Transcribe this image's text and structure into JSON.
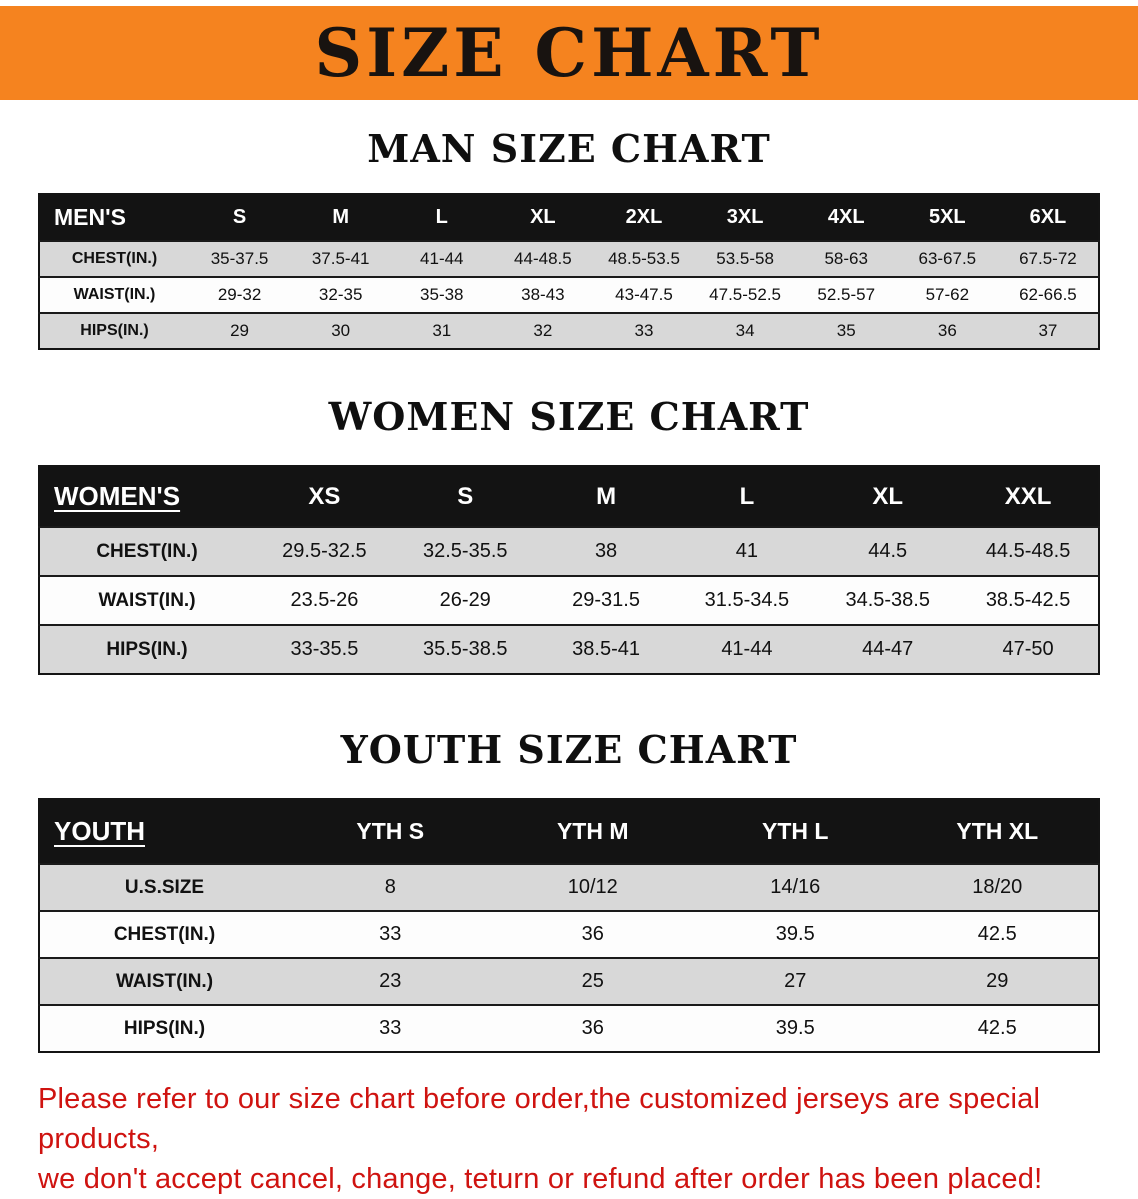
{
  "banner": {
    "title": "SIZE CHART",
    "bg_color": "#f5831f",
    "text_color": "#181310"
  },
  "sections": [
    {
      "heading": "MAN SIZE CHART",
      "table": {
        "corner_label": "MEN'S",
        "corner_underline": false,
        "columns": [
          "S",
          "M",
          "L",
          "XL",
          "2XL",
          "3XL",
          "4XL",
          "5XL",
          "6XL"
        ],
        "rows": [
          {
            "label": "CHEST(IN.)",
            "values": [
              "35-37.5",
              "37.5-41",
              "41-44",
              "44-48.5",
              "48.5-53.5",
              "53.5-58",
              "58-63",
              "63-67.5",
              "67.5-72"
            ]
          },
          {
            "label": "WAIST(IN.)",
            "values": [
              "29-32",
              "32-35",
              "35-38",
              "38-43",
              "43-47.5",
              "47.5-52.5",
              "52.5-57",
              "57-62",
              "62-66.5"
            ]
          },
          {
            "label": "HIPS(IN.)",
            "values": [
              "29",
              "30",
              "31",
              "32",
              "33",
              "34",
              "35",
              "36",
              "37"
            ]
          }
        ]
      }
    },
    {
      "heading": "WOMEN SIZE CHART",
      "table": {
        "corner_label": "WOMEN'S",
        "corner_underline": true,
        "columns": [
          "XS",
          "S",
          "M",
          "L",
          "XL",
          "XXL"
        ],
        "rows": [
          {
            "label": "CHEST(IN.)",
            "values": [
              "29.5-32.5",
              "32.5-35.5",
              "38",
              "41",
              "44.5",
              "44.5-48.5"
            ]
          },
          {
            "label": "WAIST(IN.)",
            "values": [
              "23.5-26",
              "26-29",
              "29-31.5",
              "31.5-34.5",
              "34.5-38.5",
              "38.5-42.5"
            ]
          },
          {
            "label": "HIPS(IN.)",
            "values": [
              "33-35.5",
              "35.5-38.5",
              "38.5-41",
              "41-44",
              "44-47",
              "47-50"
            ]
          }
        ]
      }
    },
    {
      "heading": "YOUTH SIZE CHART",
      "table": {
        "corner_label": "YOUTH",
        "corner_underline": true,
        "columns": [
          "YTH S",
          "YTH M",
          "YTH L",
          "YTH XL"
        ],
        "rows": [
          {
            "label": "U.S.SIZE",
            "values": [
              "8",
              "10/12",
              "14/16",
              "18/20"
            ]
          },
          {
            "label": "CHEST(IN.)",
            "values": [
              "33",
              "36",
              "39.5",
              "42.5"
            ]
          },
          {
            "label": "WAIST(IN.)",
            "values": [
              "23",
              "25",
              "27",
              "29"
            ]
          },
          {
            "label": "HIPS(IN.)",
            "values": [
              "33",
              "36",
              "39.5",
              "42.5"
            ]
          }
        ]
      }
    }
  ],
  "footer": {
    "line1": "Please refer to our size chart before order,the customized jerseys are special products,",
    "line2": "we don't accept cancel, change, teturn or refund after order has been placed!",
    "text_color": "#cf1310"
  }
}
